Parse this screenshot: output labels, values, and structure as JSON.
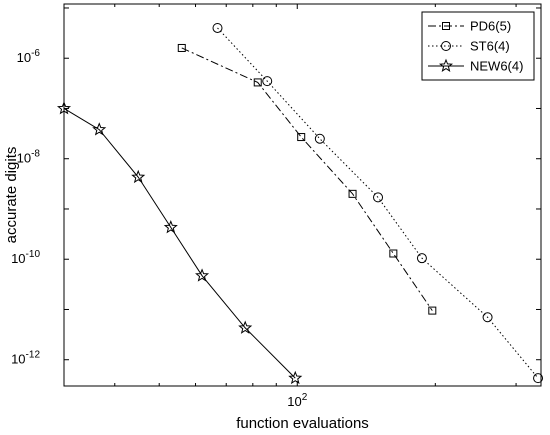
{
  "chart_data": {
    "type": "line",
    "xlabel": "function evaluations",
    "ylabel": "accurate digits",
    "xscale": "log",
    "yscale": "log",
    "xlim": [
      31,
      340
    ],
    "ylim": [
      3e-13,
      1.2e-05
    ],
    "grid": false,
    "legend_position": "top-right",
    "x_tick_labels": [
      {
        "base": "10",
        "exp": "2",
        "value": 100
      }
    ],
    "y_tick_labels": [
      {
        "base": "10",
        "exp": "-6",
        "value": 1e-06
      },
      {
        "base": "10",
        "exp": "-8",
        "value": 1e-08
      },
      {
        "base": "10",
        "exp": "-10",
        "value": 1e-10
      },
      {
        "base": "10",
        "exp": "-12",
        "value": 1e-12
      }
    ],
    "series": [
      {
        "name": "PD6(5)",
        "style": "dashdot",
        "marker": "square",
        "color": "#000000",
        "x": [
          56,
          82,
          102,
          132,
          162,
          197
        ],
        "y": [
          1.6e-06,
          3.3e-07,
          2.7e-08,
          2e-09,
          1.3e-10,
          9.5e-12
        ]
      },
      {
        "name": "ST6(4)",
        "style": "dotted",
        "marker": "circle",
        "color": "#000000",
        "x": [
          67,
          86,
          112,
          150,
          187,
          260,
          335
        ],
        "y": [
          4e-06,
          3.5e-07,
          2.5e-08,
          1.7e-09,
          1.05e-10,
          7e-12,
          4.3e-13
        ]
      },
      {
        "name": "NEW6(4)",
        "style": "solid",
        "marker": "star",
        "color": "#000000",
        "x": [
          31,
          37,
          45,
          53,
          62,
          77,
          99
        ],
        "y": [
          1e-07,
          3.8e-08,
          4.3e-09,
          4.3e-10,
          4.7e-11,
          4.3e-12,
          4.3e-13
        ]
      }
    ]
  }
}
